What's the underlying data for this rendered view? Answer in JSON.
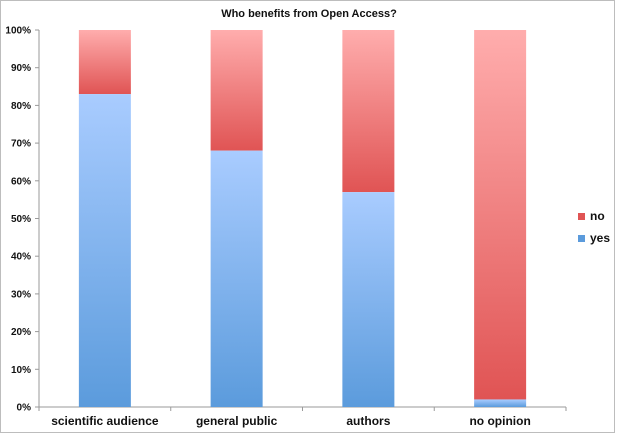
{
  "chart_data": {
    "type": "bar",
    "stacked": true,
    "title": "Who benefits from Open Access?",
    "categories": [
      "scientific audience",
      "general public",
      "authors",
      "no opinion"
    ],
    "series": [
      {
        "name": "yes",
        "values": [
          83,
          68,
          57,
          2
        ],
        "color_light": "#a9ccff",
        "color_dark": "#5b9bdc"
      },
      {
        "name": "no",
        "values": [
          17,
          32,
          43,
          98
        ],
        "color_light": "#ffadad",
        "color_dark": "#e05454"
      }
    ],
    "y_ticks": [
      "0%",
      "10%",
      "20%",
      "30%",
      "40%",
      "50%",
      "60%",
      "70%",
      "80%",
      "90%",
      "100%"
    ],
    "ylim": [
      0,
      100
    ],
    "grid": false,
    "legend": {
      "placement": "right",
      "entries": [
        "no",
        "yes"
      ]
    }
  }
}
